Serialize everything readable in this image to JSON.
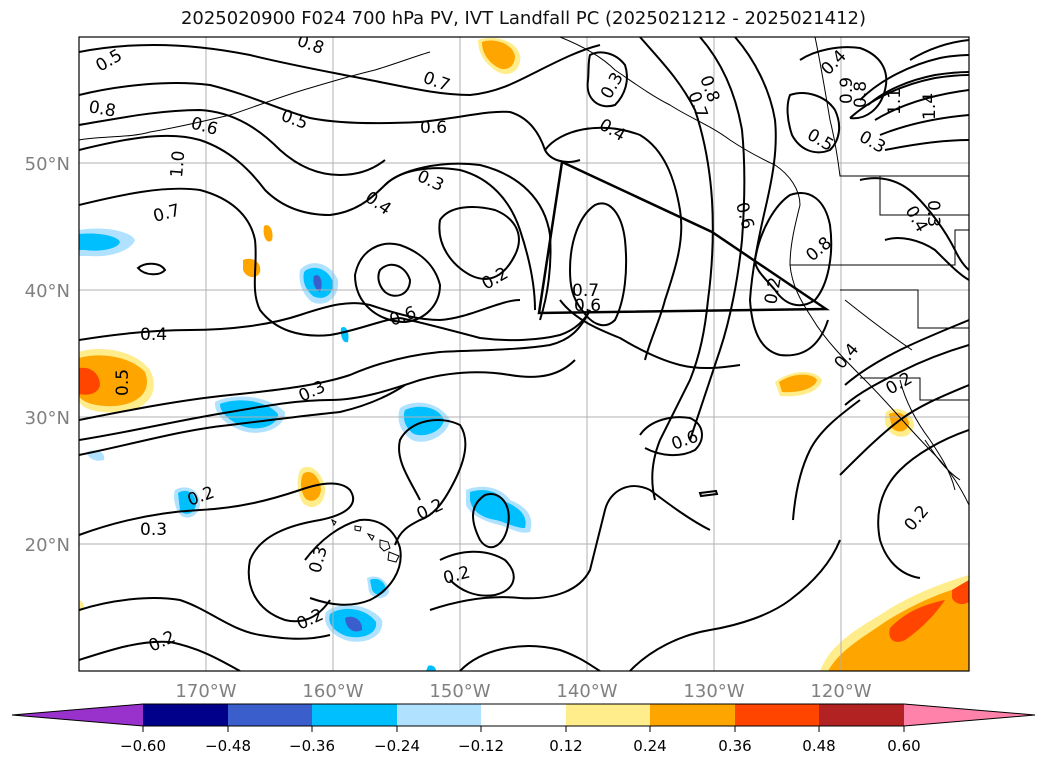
{
  "title": "2025020900 F024 700 hPa PV, IVT Landfall PC (2025021212 - 2025021412)",
  "axes": {
    "lat_labels": [
      "50°N",
      "40°N",
      "30°N",
      "20°N"
    ],
    "lon_labels": [
      "170°W",
      "160°W",
      "150°W",
      "140°W",
      "130°W",
      "120°W"
    ],
    "grid": true
  },
  "colorbar": {
    "ticks": [
      "−0.60",
      "−0.48",
      "−0.36",
      "−0.24",
      "−0.12",
      "0.12",
      "0.24",
      "0.36",
      "0.48",
      "0.60"
    ],
    "colors": [
      "#9932cc",
      "#00008b",
      "#3a5fcd",
      "#00bfff",
      "#b0e2ff",
      "#ffffff",
      "#ffec8b",
      "#ffa500",
      "#ff4500",
      "#b22222",
      "#ff82ab"
    ],
    "extend": "both"
  },
  "contour_labels": [
    "0.5",
    "0.8",
    "0.7",
    "0.8",
    "0.6",
    "0.5",
    "0.6",
    "1.0",
    "0.7",
    "0.3",
    "0.4",
    "0.6",
    "0.2",
    "0.7",
    "0.6",
    "0.3",
    "0.4",
    "0.8",
    "0.7",
    "0.5",
    "0.4",
    "0.9",
    "0.8",
    "0.3",
    "1.1",
    "1.4",
    "0.6",
    "0.8",
    "0.4",
    "0.3",
    "0.4",
    "0.5",
    "0.3",
    "0.2",
    "0.3",
    "0.2",
    "0.3",
    "0.2",
    "0.2",
    "0.6",
    "0.2",
    "0.4",
    "0.2",
    "0.2",
    "0.2"
  ]
}
